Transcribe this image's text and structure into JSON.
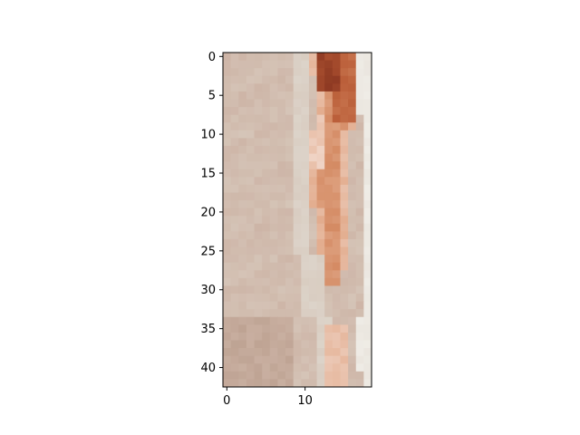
{
  "chart_data": {
    "type": "heatmap",
    "title": "",
    "xlabel": "",
    "ylabel": "",
    "x_ticks": [
      "0",
      "10"
    ],
    "y_ticks": [
      "0",
      "5",
      "10",
      "15",
      "20",
      "25",
      "30",
      "35",
      "40"
    ],
    "xlim": [
      -0.5,
      18.5
    ],
    "ylim": [
      42.5,
      -0.5
    ],
    "grid": false,
    "legend": "none",
    "image": {
      "rows": 43,
      "cols": 19,
      "content": "pixelated photo crop: beige fabric on the left, reddish-orange shape in the upper right, off-white background along the right edge",
      "palette": {
        "beige_light": "#d6c6b9",
        "beige_mid": "#cdb4a6",
        "beige_dark": "#bea393",
        "pale_stripe": "#dcd3c9",
        "orange_light": "#e2ab8c",
        "orange_mid": "#d48a63",
        "rust": "#b85a35",
        "dark_rust": "#8e3a23",
        "pink_highlight": "#efd4c6",
        "off_white": "#efece6"
      }
    }
  }
}
